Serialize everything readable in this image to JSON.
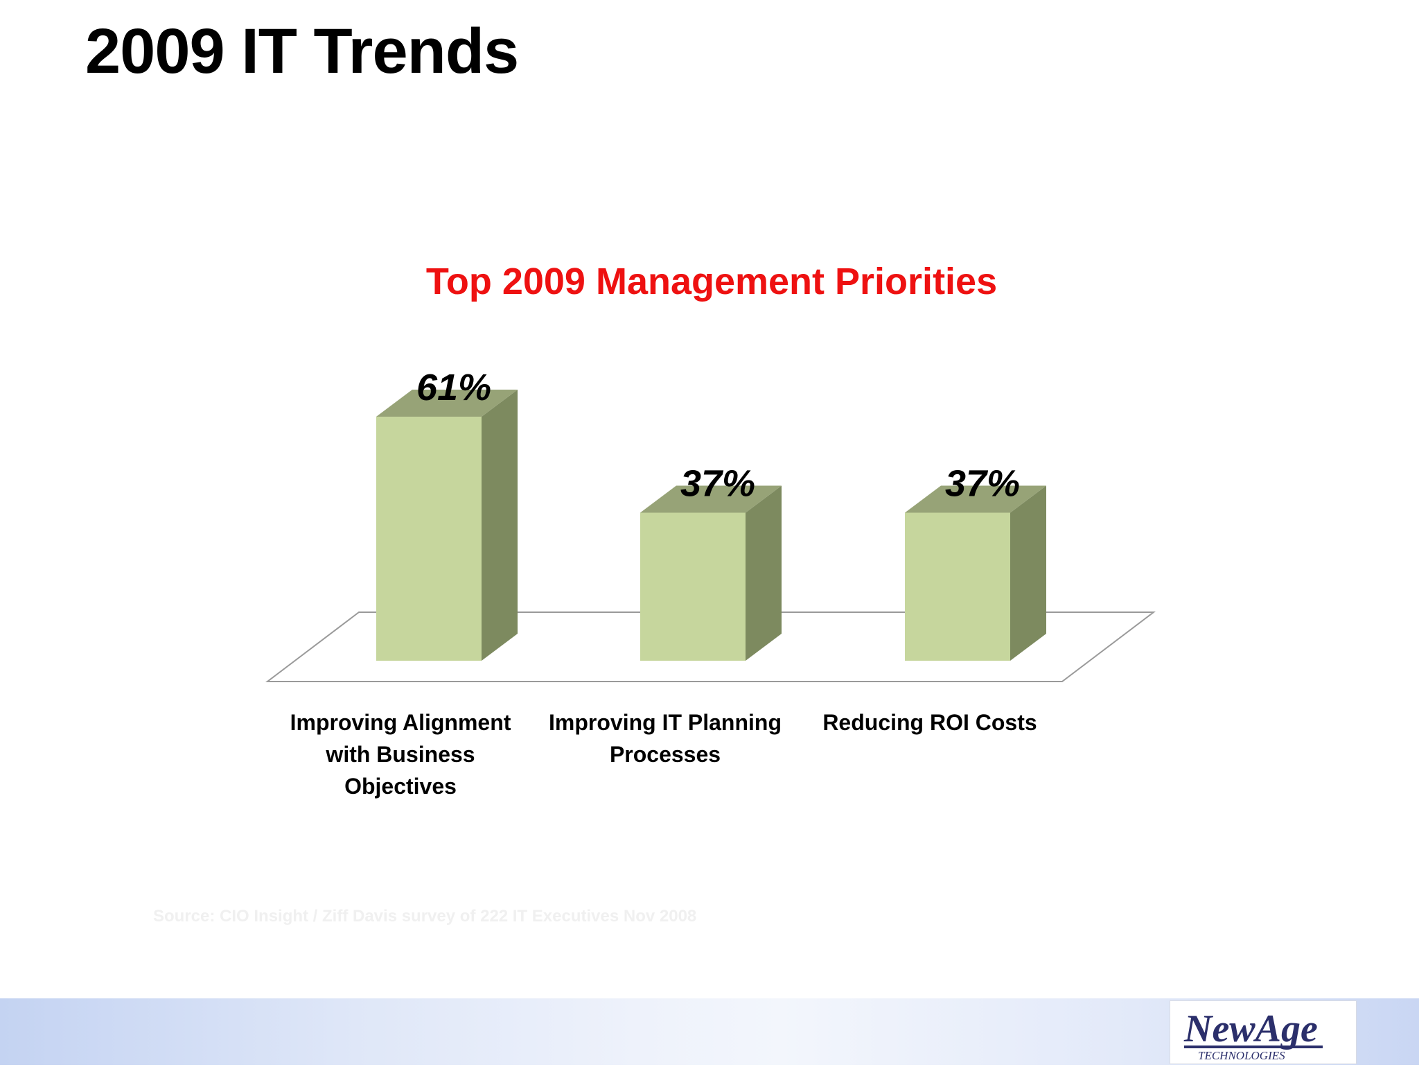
{
  "slide": {
    "title": "2009 IT Trends",
    "source": "Source:  CIO Insight / Ziff Davis survey of 222 IT Executives Nov 2008",
    "logo": {
      "main_text": "NewAge",
      "sub_text": "TECHNOLOGIES"
    }
  },
  "colors": {
    "title_red": "#ee1111",
    "bar_front": "#c6d69d",
    "bar_side": "#7d8a5f",
    "bar_top": "#97a377",
    "floor_line": "#9a9a9a"
  },
  "chart_data": {
    "type": "bar",
    "style": "3d-column",
    "title": "Top 2009 Management Priorities",
    "xlabel": "",
    "ylabel": "",
    "categories": [
      "Improving Alignment with Business Objectives",
      "Improving IT Planning Processes",
      "Reducing ROI Costs"
    ],
    "category_label_lines": [
      [
        "Improving Alignment",
        "with Business",
        "Objectives"
      ],
      [
        "Improving IT Planning",
        "Processes"
      ],
      [
        "Reducing ROI Costs"
      ]
    ],
    "values": [
      61,
      37,
      37
    ],
    "data_labels": [
      "61%",
      "37%",
      "37%"
    ],
    "unit": "%",
    "grid": false,
    "legend": "none"
  }
}
